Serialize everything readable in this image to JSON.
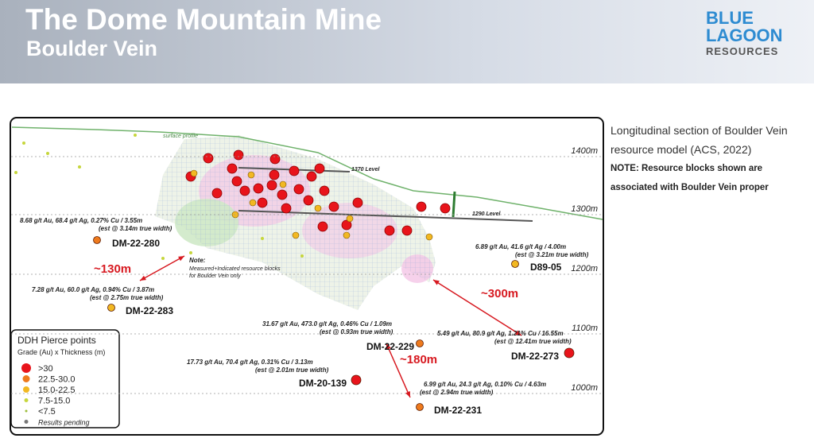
{
  "header": {
    "title": "The Dome Mountain Mine",
    "subtitle": "Boulder Vein",
    "logo": [
      "BLUE",
      "LAGOON",
      "RESOURCES"
    ]
  },
  "description": {
    "text": "Longitudinal section of Boulder Vein resource model (ACS, 2022)",
    "note": "NOTE: Resource blocks shown are associated with Boulder Vein proper"
  },
  "section": {
    "surface_label": "surface profile",
    "elevations": [
      "1400m",
      "1300m",
      "1200m",
      "1100m",
      "1000m"
    ],
    "levels": [
      "1370 Level",
      "1290 Level"
    ],
    "note": [
      "Note:",
      "Measured+Indicated resource blocks",
      "for Boulder Vein only"
    ],
    "distances": [
      "~130m",
      "~300m",
      "~180m"
    ],
    "holes": [
      {
        "name": "DM-22-280",
        "result": "8.68 g/t Au, 68.4 g/t Ag, 0.27% Cu / 3.55m",
        "width": "(est @ 3.14m true width)"
      },
      {
        "name": "DM-22-283",
        "result": "7.28 g/t Au, 60.0 g/t Ag, 0.94% Cu / 3.87m",
        "width": "(est @ 2.75m true width)"
      },
      {
        "name": "D89-05",
        "result": "6.89 g/t Au, 41.6 g/t Ag / 4.00m",
        "width": "(est @ 3.21m true width)"
      },
      {
        "name": "DM-22-229",
        "result": "31.67 g/t Au, 473.0 g/t Ag, 0.46% Cu / 1.09m",
        "width": "(est @ 0.93m true width)"
      },
      {
        "name": "DM-22-273",
        "result": "5.49 g/t Au, 80.9 g/t Ag, 1.21% Cu / 16.55m",
        "width": "(est @ 12.41m true width)"
      },
      {
        "name": "DM-20-139",
        "result": "17.73 g/t Au, 70.4 g/t Ag, 0.31% Cu / 3.13m",
        "width": "(est @ 2.01m true width)"
      },
      {
        "name": "DM-22-231",
        "result": "6.99 g/t Au, 24.3 g/t Ag, 0.10% Cu / 4.63m",
        "width": "(est @ 2.94m true width)"
      }
    ]
  },
  "legend": {
    "title": "DDH Pierce points",
    "subtitle": "Grade (Au) x Thickness (m)",
    "items": [
      ">30",
      "22.5-30.0",
      "15.0-22.5",
      "7.5-15.0",
      "<7.5",
      "Results pending"
    ]
  }
}
